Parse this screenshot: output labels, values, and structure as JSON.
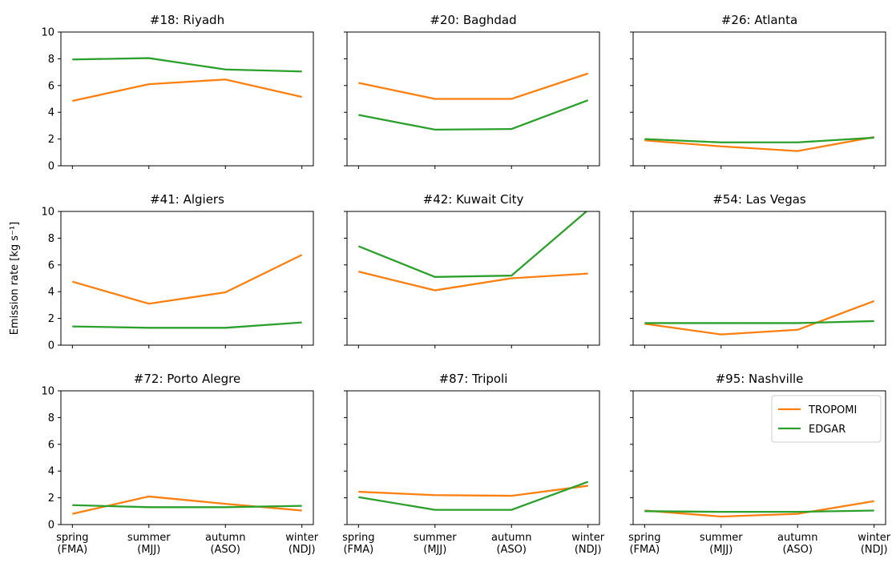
{
  "chart_data": [
    {
      "type": "line",
      "title": "#18: Riyadh",
      "categories": [
        null,
        null,
        null,
        null
      ],
      "ylim": [
        0,
        10
      ],
      "yticks": [
        0,
        2,
        4,
        6,
        8,
        10
      ],
      "series": [
        {
          "color": "#ff7f0e",
          "values": [
            4.85,
            6.1,
            6.45,
            5.15
          ]
        },
        {
          "color": "#2ca02c",
          "values": [
            7.95,
            8.05,
            7.2,
            7.05
          ]
        }
      ]
    },
    {
      "type": "line",
      "title": "#20: Baghdad",
      "categories": [
        null,
        null,
        null,
        null
      ],
      "ylim": [
        0,
        10
      ],
      "yticks": [
        0,
        2,
        4,
        6,
        8,
        10
      ],
      "series": [
        {
          "color": "#ff7f0e",
          "values": [
            6.2,
            5.0,
            5.0,
            6.9
          ]
        },
        {
          "color": "#2ca02c",
          "values": [
            3.8,
            2.7,
            2.75,
            4.9
          ]
        }
      ]
    },
    {
      "type": "line",
      "title": "#26: Atlanta",
      "categories": [
        null,
        null,
        null,
        null
      ],
      "ylim": [
        0,
        10
      ],
      "yticks": [
        0,
        2,
        4,
        6,
        8,
        10
      ],
      "series": [
        {
          "color": "#ff7f0e",
          "values": [
            1.9,
            1.45,
            1.1,
            2.15
          ]
        },
        {
          "color": "#2ca02c",
          "values": [
            2.0,
            1.75,
            1.75,
            2.1
          ]
        }
      ]
    },
    {
      "type": "line",
      "title": "#41: Algiers",
      "ylabel": "Emission rate [kg s⁻¹]",
      "categories": [
        null,
        null,
        null,
        null
      ],
      "ylim": [
        0,
        10
      ],
      "yticks": [
        0,
        2,
        4,
        6,
        8,
        10
      ],
      "series": [
        {
          "color": "#ff7f0e",
          "values": [
            4.75,
            3.1,
            3.95,
            6.75
          ]
        },
        {
          "color": "#2ca02c",
          "values": [
            1.4,
            1.3,
            1.3,
            1.7
          ]
        }
      ]
    },
    {
      "type": "line",
      "title": "#42: Kuwait City",
      "categories": [
        null,
        null,
        null,
        null
      ],
      "ylim": [
        0,
        10
      ],
      "yticks": [
        0,
        2,
        4,
        6,
        8,
        10
      ],
      "series": [
        {
          "color": "#ff7f0e",
          "values": [
            5.5,
            4.1,
            5.0,
            5.35
          ]
        },
        {
          "color": "#2ca02c",
          "values": [
            7.4,
            5.1,
            5.2,
            10.1
          ]
        }
      ]
    },
    {
      "type": "line",
      "title": "#54: Las Vegas",
      "categories": [
        null,
        null,
        null,
        null
      ],
      "ylim": [
        0,
        10
      ],
      "yticks": [
        0,
        2,
        4,
        6,
        8,
        10
      ],
      "series": [
        {
          "color": "#ff7f0e",
          "values": [
            1.6,
            0.8,
            1.15,
            3.3
          ]
        },
        {
          "color": "#2ca02c",
          "values": [
            1.65,
            1.65,
            1.65,
            1.8
          ]
        }
      ]
    },
    {
      "type": "line",
      "title": "#72: Porto Alegre",
      "categories": [
        "spring\n(FMA)",
        "summer\n(MJJ)",
        "autumn\n(ASO)",
        "winter\n(NDJ)"
      ],
      "ylim": [
        0,
        10
      ],
      "yticks": [
        0,
        2,
        4,
        6,
        8,
        10
      ],
      "series": [
        {
          "color": "#ff7f0e",
          "values": [
            0.8,
            2.1,
            1.55,
            1.05
          ]
        },
        {
          "color": "#2ca02c",
          "values": [
            1.45,
            1.3,
            1.3,
            1.4
          ]
        }
      ]
    },
    {
      "type": "line",
      "title": "#87: Tripoli",
      "categories": [
        "spring\n(FMA)",
        "summer\n(MJJ)",
        "autumn\n(ASO)",
        "winter\n(NDJ)"
      ],
      "ylim": [
        0,
        10
      ],
      "yticks": [
        0,
        2,
        4,
        6,
        8,
        10
      ],
      "series": [
        {
          "color": "#ff7f0e",
          "values": [
            2.45,
            2.2,
            2.15,
            2.9
          ]
        },
        {
          "color": "#2ca02c",
          "values": [
            2.05,
            1.1,
            1.1,
            3.2
          ]
        }
      ]
    },
    {
      "type": "line",
      "title": "#95: Nashville",
      "categories": [
        "spring\n(FMA)",
        "summer\n(MJJ)",
        "autumn\n(ASO)",
        "winter\n(NDJ)"
      ],
      "ylim": [
        0,
        10
      ],
      "yticks": [
        0,
        2,
        4,
        6,
        8,
        10
      ],
      "legend": "upper right",
      "series": [
        {
          "name": "TROPOMI",
          "color": "#ff7f0e",
          "values": [
            1.05,
            0.6,
            0.8,
            1.75
          ]
        },
        {
          "name": "EDGAR",
          "color": "#2ca02c",
          "values": [
            1.0,
            0.95,
            0.95,
            1.05
          ]
        }
      ]
    }
  ]
}
